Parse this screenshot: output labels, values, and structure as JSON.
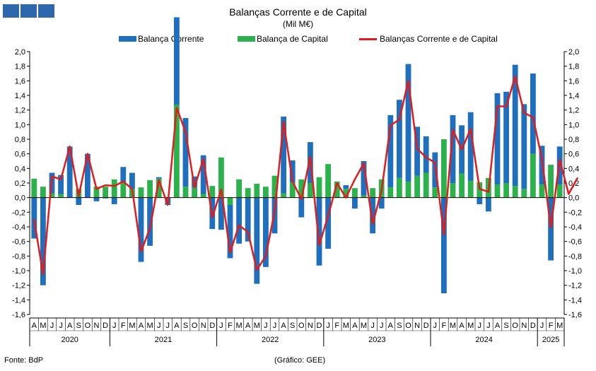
{
  "logo_icon": "gee-logo-blocks",
  "footer": {
    "source": "Fonte: BdP",
    "credit": "(Gráfico: GEE)"
  },
  "chart_data": {
    "type": "bar",
    "title": "Balanças Corrente e de Capital",
    "subtitle": "(Mil M€)",
    "ylim": [
      -1.6,
      2.0
    ],
    "ytick_step": 0.2,
    "grid": false,
    "legend_position": "top",
    "month_labels": [
      "A",
      "M",
      "J",
      "J",
      "A",
      "S",
      "O",
      "N",
      "D",
      "J",
      "F",
      "M",
      "A",
      "M",
      "J",
      "J",
      "A",
      "S",
      "O",
      "N",
      "D",
      "J",
      "F",
      "M",
      "A",
      "M",
      "J",
      "J",
      "A",
      "S",
      "O",
      "N",
      "D",
      "J",
      "F",
      "M",
      "A",
      "M",
      "J",
      "J",
      "A",
      "S",
      "O",
      "N",
      "D",
      "J",
      "F",
      "M",
      "A",
      "M",
      "J",
      "J",
      "A",
      "S",
      "O",
      "N",
      "D",
      "J",
      "F",
      "M"
    ],
    "year_groups": [
      {
        "label": "2020",
        "start": 0,
        "count": 9
      },
      {
        "label": "2021",
        "start": 9,
        "count": 12
      },
      {
        "label": "2022",
        "start": 21,
        "count": 12
      },
      {
        "label": "2023",
        "start": 33,
        "count": 12
      },
      {
        "label": "2024",
        "start": 45,
        "count": 12
      },
      {
        "label": "2025",
        "start": 57,
        "count": 3
      }
    ],
    "series": [
      {
        "name": "Balança Corrente",
        "kind": "bar",
        "color": "#1f6fbf",
        "values": [
          -0.56,
          -1.2,
          0.28,
          0.26,
          0.7,
          -0.1,
          0.6,
          -0.05,
          -0.01,
          -0.09,
          0.2,
          0.22,
          -0.88,
          -0.66,
          0.02,
          -0.1,
          1.2,
          0.94,
          0.15,
          0.53,
          -0.43,
          -0.44,
          -0.73,
          -0.63,
          -0.6,
          -1.18,
          -0.95,
          -0.49,
          1.05,
          0.3,
          -0.27,
          0.56,
          -0.93,
          -0.7,
          0.0,
          0.05,
          -0.15,
          0.47,
          -0.49,
          -0.15,
          0.99,
          1.07,
          1.61,
          0.67,
          0.5,
          0.48,
          -1.31,
          0.93,
          0.66,
          0.94,
          -0.09,
          -0.19,
          1.25,
          1.25,
          1.66,
          1.16,
          1.1,
          0.53,
          -0.86,
          0.52,
          -0.22,
          -0.17
        ]
      },
      {
        "name": "Balança de Capital",
        "kind": "bar",
        "color": "#2bb24c",
        "values": [
          0.26,
          0.15,
          0.06,
          0.05,
          0.0,
          0.12,
          0.0,
          0.15,
          0.15,
          0.25,
          0.22,
          0.12,
          0.14,
          0.24,
          0.26,
          0.0,
          1.27,
          0.15,
          0.14,
          0.05,
          0.16,
          0.55,
          -0.1,
          0.25,
          0.13,
          0.19,
          0.15,
          0.3,
          0.06,
          0.21,
          0.25,
          0.2,
          0.28,
          0.46,
          0.22,
          0.12,
          0.13,
          0.03,
          0.13,
          0.25,
          0.14,
          0.27,
          0.22,
          0.3,
          0.34,
          0.14,
          0.8,
          0.2,
          0.33,
          0.23,
          0.21,
          0.27,
          0.18,
          0.2,
          0.16,
          0.12,
          0.6,
          0.18,
          0.45,
          0.18,
          0.28,
          0.44
        ]
      },
      {
        "name": "Balanças Corrente e de Capital",
        "kind": "line",
        "color": "#e31b1b",
        "values": [
          -0.3,
          -1.05,
          0.29,
          0.25,
          0.7,
          0.02,
          0.6,
          0.12,
          0.17,
          0.16,
          0.22,
          0.12,
          -0.74,
          -0.42,
          0.24,
          -0.1,
          1.23,
          0.9,
          0.14,
          0.53,
          -0.27,
          0.11,
          -0.75,
          -0.38,
          -0.47,
          -0.99,
          -0.8,
          -0.19,
          1.04,
          0.22,
          -0.02,
          0.56,
          -0.65,
          -0.25,
          0.2,
          0.0,
          0.25,
          0.47,
          -0.36,
          0.1,
          0.99,
          1.07,
          1.6,
          0.67,
          0.55,
          0.48,
          -0.51,
          0.93,
          0.66,
          0.94,
          0.12,
          0.08,
          1.25,
          1.25,
          1.66,
          1.16,
          1.1,
          0.53,
          -0.41,
          0.52,
          0.05,
          0.27
        ]
      }
    ]
  }
}
